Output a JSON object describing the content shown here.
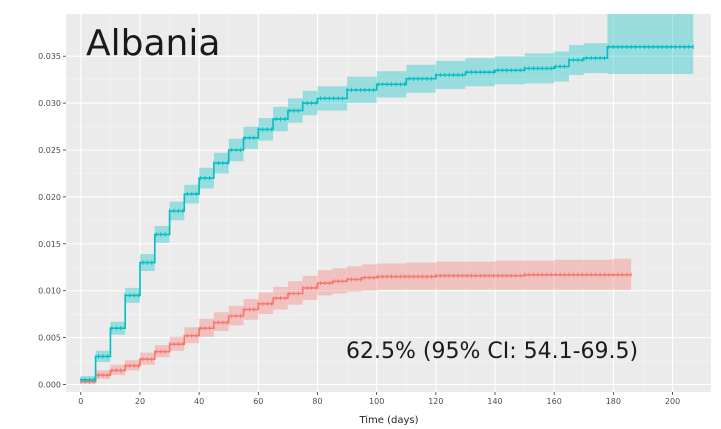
{
  "chart_data": {
    "type": "line",
    "title": "Albania",
    "xlabel": "Time (days)",
    "ylabel": "",
    "xlim": [
      -5,
      213
    ],
    "ylim": [
      -0.0008,
      0.0395
    ],
    "xticks": [
      0,
      20,
      40,
      60,
      80,
      100,
      120,
      140,
      160,
      180,
      200
    ],
    "yticks": [
      0.0,
      0.005,
      0.01,
      0.015,
      0.02,
      0.025,
      0.03,
      0.035
    ],
    "ytick_labels": [
      "0.000",
      "0.005",
      "0.010",
      "0.015",
      "0.020",
      "0.025",
      "0.030",
      "0.035"
    ],
    "grid": true,
    "annotation": "62.5% (95% CI: 54.1-69.5)",
    "series": [
      {
        "color": "#f8766d",
        "x": [
          0,
          5,
          10,
          15,
          20,
          25,
          30,
          35,
          40,
          45,
          50,
          55,
          60,
          65,
          70,
          75,
          80,
          85,
          90,
          95,
          100,
          110,
          120,
          130,
          140,
          150,
          160,
          170,
          180,
          186
        ],
        "y": [
          0.0003,
          0.001,
          0.0015,
          0.002,
          0.0027,
          0.0035,
          0.0043,
          0.0052,
          0.006,
          0.0066,
          0.0073,
          0.008,
          0.0086,
          0.0092,
          0.0097,
          0.0103,
          0.0108,
          0.011,
          0.0112,
          0.0114,
          0.0115,
          0.0115,
          0.0116,
          0.0116,
          0.0116,
          0.0117,
          0.0117,
          0.0117,
          0.0117,
          0.0117
        ],
        "lower": [
          0.0001,
          0.0006,
          0.001,
          0.0015,
          0.0021,
          0.0029,
          0.0036,
          0.0044,
          0.0051,
          0.0057,
          0.0063,
          0.0069,
          0.0075,
          0.008,
          0.0085,
          0.009,
          0.0095,
          0.0097,
          0.0099,
          0.01,
          0.0101,
          0.0101,
          0.0101,
          0.0101,
          0.0101,
          0.0101,
          0.0101,
          0.0101,
          0.0101,
          0.0101
        ],
        "upper": [
          0.0006,
          0.0015,
          0.0021,
          0.0026,
          0.0034,
          0.0042,
          0.0051,
          0.0061,
          0.007,
          0.0077,
          0.0084,
          0.0091,
          0.0098,
          0.0104,
          0.011,
          0.0116,
          0.0122,
          0.0124,
          0.0126,
          0.0128,
          0.0129,
          0.013,
          0.0131,
          0.0131,
          0.0132,
          0.0132,
          0.0133,
          0.0133,
          0.0134,
          0.0134
        ]
      },
      {
        "color": "#00bfc4",
        "x": [
          0,
          5,
          10,
          15,
          20,
          25,
          30,
          35,
          40,
          45,
          50,
          55,
          60,
          65,
          70,
          75,
          80,
          90,
          100,
          110,
          120,
          130,
          140,
          150,
          160,
          163,
          165,
          170,
          178,
          190,
          200,
          207
        ],
        "y": [
          0.0005,
          0.003,
          0.006,
          0.0095,
          0.013,
          0.016,
          0.0185,
          0.0203,
          0.022,
          0.0236,
          0.025,
          0.0263,
          0.0272,
          0.0283,
          0.0292,
          0.03,
          0.0305,
          0.0314,
          0.032,
          0.0326,
          0.033,
          0.0333,
          0.0335,
          0.0337,
          0.0339,
          0.0339,
          0.0346,
          0.0348,
          0.036,
          0.036,
          0.036,
          0.036
        ],
        "lower": [
          0.0002,
          0.0024,
          0.0053,
          0.0087,
          0.0121,
          0.0151,
          0.0175,
          0.0193,
          0.0209,
          0.0225,
          0.0238,
          0.0251,
          0.026,
          0.027,
          0.0279,
          0.0287,
          0.0292,
          0.03,
          0.0306,
          0.0311,
          0.0315,
          0.0318,
          0.032,
          0.0321,
          0.0323,
          0.0323,
          0.033,
          0.0332,
          0.0331,
          0.0331,
          0.0331,
          0.0331
        ],
        "upper": [
          0.0009,
          0.0036,
          0.0067,
          0.0103,
          0.0139,
          0.0169,
          0.0195,
          0.0213,
          0.0231,
          0.0247,
          0.0262,
          0.0275,
          0.0284,
          0.0296,
          0.0305,
          0.0313,
          0.0318,
          0.0328,
          0.0334,
          0.0341,
          0.0345,
          0.0348,
          0.035,
          0.0353,
          0.0355,
          0.0355,
          0.0362,
          0.0364,
          0.0395,
          0.0395,
          0.0395,
          0.0395
        ]
      }
    ]
  }
}
